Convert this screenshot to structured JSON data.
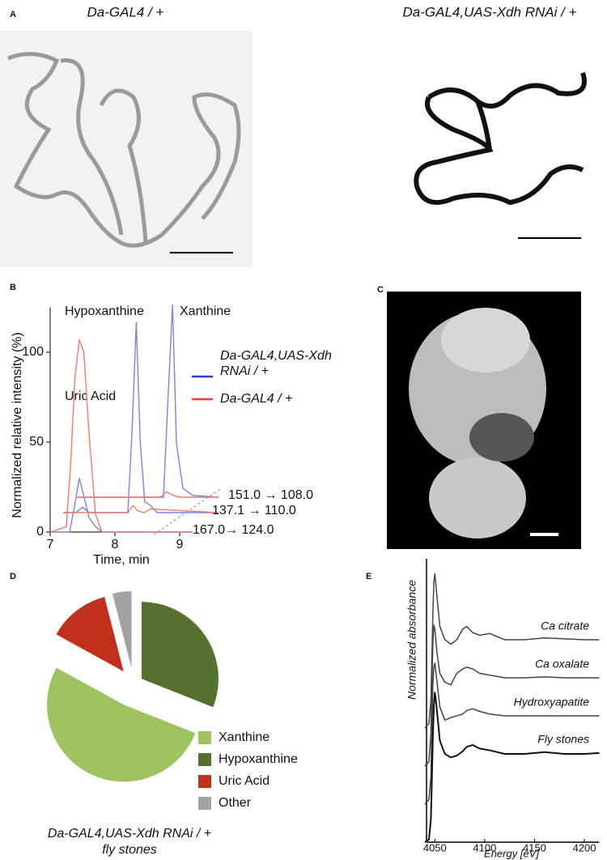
{
  "panel_labels": [
    "A",
    "B",
    "C",
    "D",
    "E"
  ],
  "panel_a": {
    "left_title": "Da-GAL4 / +",
    "right_title": "Da-GAL4,UAS-Xdh RNAi / +"
  },
  "chart_data": [
    {
      "type": "chromatogram",
      "xlabel": "Time, min",
      "ylabel": "Normalized relative intensity (%)",
      "xlim": [
        7,
        9.6
      ],
      "xticks": [
        7,
        8,
        9
      ],
      "ylim": [
        0,
        125
      ],
      "yticks": [
        0,
        50,
        100
      ],
      "legend": [
        {
          "name": "Da-GAL4,UAS-Xdh RNAi / +",
          "color": "#2a3ae0"
        },
        {
          "name": "Da-GAL4 / +",
          "color": "#e8412f"
        }
      ],
      "annotations": [
        "Hypoxanthine",
        "Xanthine",
        "Uric Acid"
      ],
      "traces": [
        {
          "label": "167.0→ 124.0",
          "series": [
            {
              "x": [
                7.0,
                7.3,
                7.38,
                7.45,
                7.52,
                7.6,
                7.7,
                7.8,
                9.2
              ],
              "values": [
                0,
                0,
                15,
                30,
                20,
                8,
                3,
                0,
                0
              ]
            },
            {
              "x": [
                7.0,
                7.25,
                7.32,
                7.38,
                7.45,
                7.52,
                7.6,
                7.7,
                7.8,
                9.2
              ],
              "values": [
                0,
                3,
                40,
                85,
                107,
                100,
                55,
                10,
                0,
                0
              ]
            }
          ]
        },
        {
          "label": "137.1 → 110.0",
          "series": [
            {
              "x": [
                7.2,
                7.4,
                7.5,
                7.6,
                8.2,
                8.27,
                8.33,
                8.39,
                8.46,
                8.55,
                8.65,
                9.6
              ],
              "values": [
                0,
                0,
                3,
                0,
                0,
                50,
                106,
                40,
                6,
                4,
                0,
                0
              ]
            },
            {
              "x": [
                7.2,
                8.2,
                8.28,
                8.35,
                8.45,
                8.55,
                9.6
              ],
              "values": [
                0,
                0,
                4,
                1,
                0,
                2,
                0
              ]
            }
          ]
        },
        {
          "label": "151.0 → 108.0",
          "series": [
            {
              "x": [
                7.4,
                8.75,
                8.82,
                8.89,
                8.95,
                9.05,
                9.2,
                9.6
              ],
              "values": [
                0,
                0,
                55,
                107,
                30,
                5,
                1,
                0
              ]
            },
            {
              "x": [
                7.4,
                8.7,
                8.8,
                8.9,
                9.0,
                9.6
              ],
              "values": [
                0,
                0,
                3,
                1,
                0,
                0
              ]
            }
          ]
        }
      ]
    },
    {
      "type": "pie",
      "title": "Da-GAL4,UAS-Xdh RNAi / +",
      "subtitle": "fly stones",
      "categories": [
        "Hypoxanthine",
        "Xanthine",
        "Uric Acid",
        "Other"
      ],
      "values": [
        31,
        52,
        13,
        4
      ],
      "colors": [
        "#56712f",
        "#9dc45f",
        "#c0311c",
        "#a3a3a3"
      ],
      "legend_order": [
        "Xanthine",
        "Hypoxanthine",
        "Uric Acid",
        "Other"
      ]
    },
    {
      "type": "line",
      "xlabel": "Energy [eV]",
      "ylabel": "Normalized absorbance",
      "xlim": [
        4040,
        4215
      ],
      "xticks": [
        4050,
        4100,
        4150,
        4200
      ],
      "ylim": [
        0,
        3.2
      ],
      "x": [
        4040,
        4044,
        4046,
        4047,
        4048,
        4049,
        4050,
        4052,
        4055,
        4060,
        4066,
        4072,
        4078,
        4082,
        4088,
        4095,
        4105,
        4120,
        4140,
        4160,
        4180,
        4200,
        4215
      ],
      "series": [
        {
          "name": "Ca citrate",
          "color": "#444444",
          "values": [
            0,
            0.05,
            0.3,
            0.8,
            1.3,
            1.65,
            1.75,
            1.5,
            1.15,
            1.0,
            0.95,
            1.0,
            1.12,
            1.15,
            1.08,
            1.05,
            1.07,
            1.0,
            1.0,
            1.02,
            1.01,
            1.0,
            1.0
          ]
        },
        {
          "name": "Ca oxalate",
          "color": "#444444",
          "values": [
            0,
            0.05,
            0.35,
            0.9,
            1.4,
            1.6,
            1.55,
            1.3,
            1.05,
            0.95,
            0.92,
            1.05,
            1.1,
            1.12,
            1.1,
            1.05,
            1.03,
            1.0,
            1.0,
            1.01,
            1.0,
            1.0,
            1.0
          ]
        },
        {
          "name": "Hydroxyapatite",
          "color": "#444444",
          "values": [
            0,
            0.05,
            0.3,
            0.85,
            1.35,
            1.55,
            1.6,
            1.4,
            1.1,
            0.95,
            0.98,
            1.0,
            1.02,
            1.06,
            1.08,
            1.05,
            1.02,
            1.0,
            1.0,
            1.0,
            1.0,
            1.0,
            1.0
          ]
        },
        {
          "name": "Fly stones",
          "color": "#111111",
          "values": [
            0,
            0.03,
            0.25,
            0.7,
            1.2,
            1.55,
            1.7,
            1.5,
            1.15,
            1.0,
            0.96,
            0.98,
            1.03,
            1.08,
            1.1,
            1.06,
            1.04,
            1.0,
            1.0,
            1.02,
            1.0,
            1.0,
            1.01
          ]
        }
      ]
    }
  ]
}
